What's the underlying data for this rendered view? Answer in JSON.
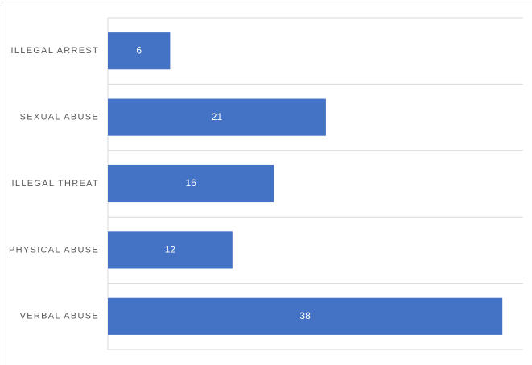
{
  "chart_data": {
    "type": "barh",
    "categories": [
      "ILLEGAL ARREST",
      "SEXUAL ABUSE",
      "ILLEGAL THREAT",
      "PHYSICAL ABUSE",
      "VERBAL ABUSE"
    ],
    "values": [
      6,
      21,
      16,
      12,
      38
    ],
    "color": "#4472c4",
    "xlim": [
      0,
      40
    ],
    "grid": true,
    "data_labels": true
  }
}
